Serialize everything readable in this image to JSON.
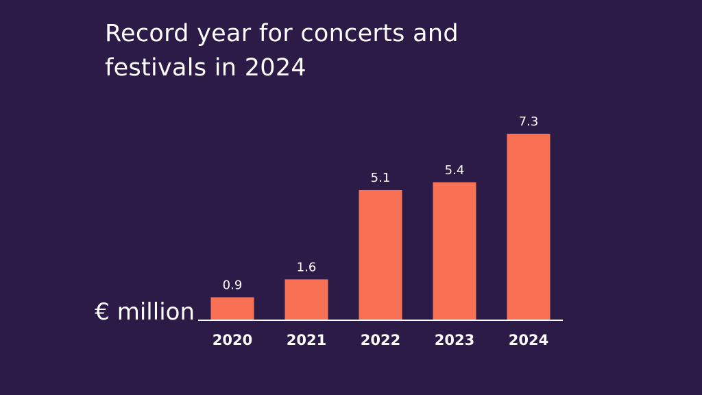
{
  "colors": {
    "background": "#2c1a47",
    "bar": "#f97154",
    "text": "#ffffff",
    "axis": "#ffffff"
  },
  "chart_data": {
    "type": "bar",
    "title": "Record year for concerts and festivals in 2024",
    "ylabel": "€ million",
    "categories": [
      "2020",
      "2021",
      "2022",
      "2023",
      "2024"
    ],
    "values": [
      0.9,
      1.6,
      5.1,
      5.4,
      7.3
    ],
    "value_labels": [
      "0.9",
      "1.6",
      "5.1",
      "5.4",
      "7.3"
    ],
    "ylim": [
      0,
      7.3
    ],
    "grid": false,
    "legend": "none"
  }
}
